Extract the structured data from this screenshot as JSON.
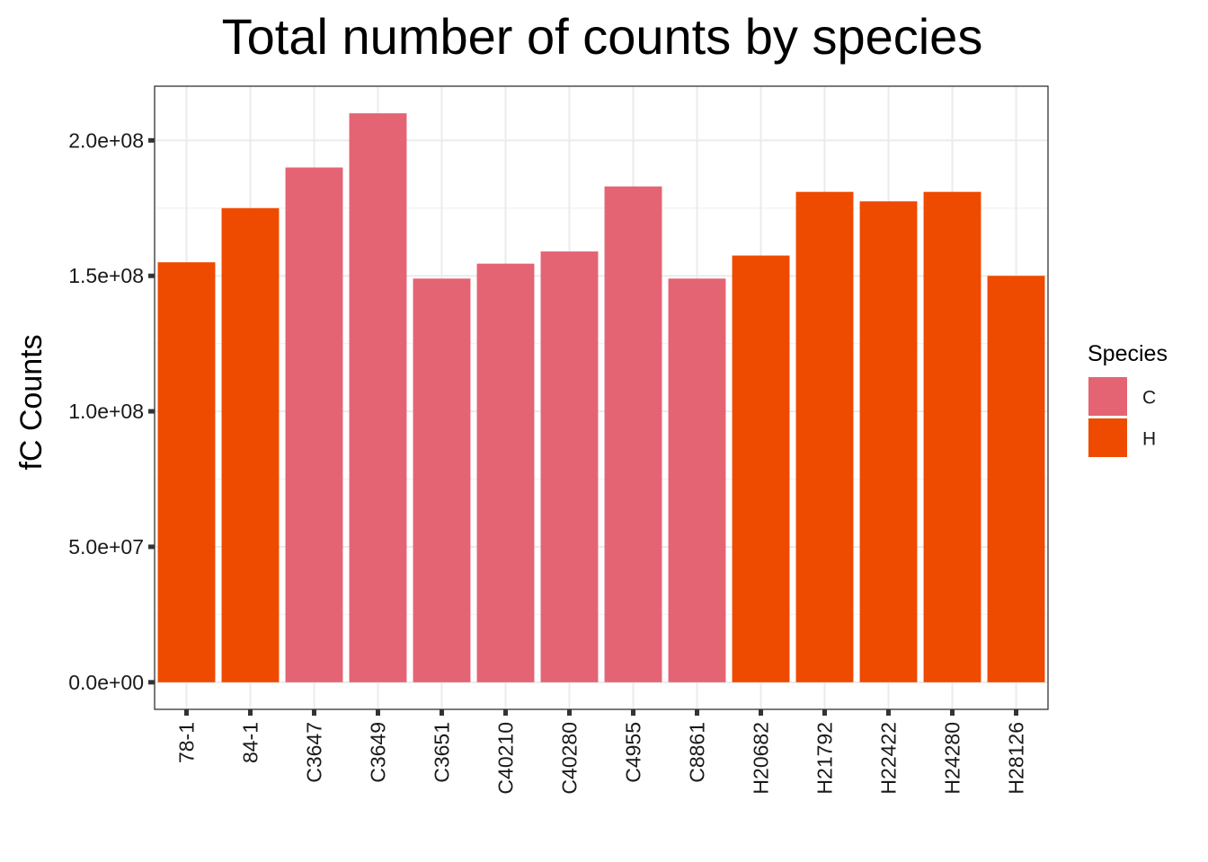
{
  "chart_data": {
    "type": "bar",
    "title": "Total number of counts by species",
    "xlabel": "",
    "ylabel": "fC Counts",
    "ylim": [
      -10000000,
      220000000
    ],
    "yticks": [
      {
        "value": 0,
        "label": "0.0e+00"
      },
      {
        "value": 50000000,
        "label": "5.0e+07"
      },
      {
        "value": 100000000,
        "label": "1.0e+08"
      },
      {
        "value": 150000000,
        "label": "1.5e+08"
      },
      {
        "value": 200000000,
        "label": "2.0e+08"
      }
    ],
    "categories": [
      "78-1",
      "84-1",
      "C3647",
      "C3649",
      "C3651",
      "C40210",
      "C40280",
      "C4955",
      "C8861",
      "H20682",
      "H21792",
      "H22422",
      "H24280",
      "H28126"
    ],
    "values": [
      155000000,
      175000000,
      190000000,
      210000000,
      149000000,
      154500000,
      159000000,
      183000000,
      149000000,
      157500000,
      181000000,
      177500000,
      181000000,
      150000000
    ],
    "species": [
      "H",
      "H",
      "C",
      "C",
      "C",
      "C",
      "C",
      "C",
      "C",
      "H",
      "H",
      "H",
      "H",
      "H"
    ],
    "grid": true,
    "legend": {
      "title": "Species",
      "placement": "right",
      "entries": [
        {
          "key": "C",
          "label": "C",
          "color": "#E46474"
        },
        {
          "key": "H",
          "label": "H",
          "color": "#EE4A00"
        }
      ]
    }
  }
}
